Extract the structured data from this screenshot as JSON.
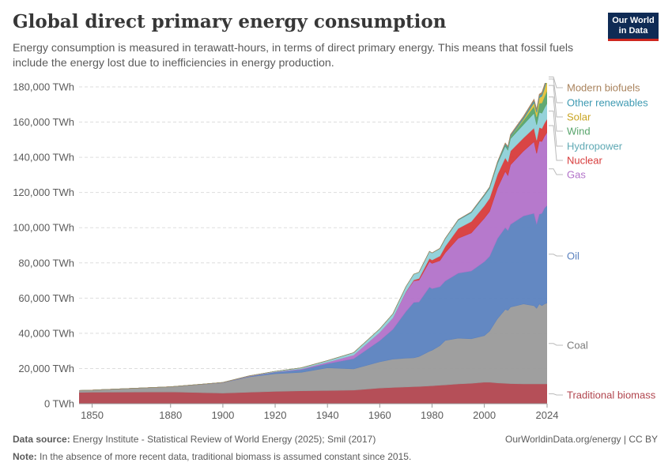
{
  "header": {
    "title": "Global direct primary energy consumption",
    "subtitle": "Energy consumption is measured in terawatt-hours, in terms of direct primary energy. This means that fossil fuels include the energy lost due to inefficiencies in energy production.",
    "logo_line1": "Our World",
    "logo_line2": "in Data",
    "logo_bg": "#0f2b55",
    "logo_accent": "#ce261e"
  },
  "footer": {
    "source_label": "Data source:",
    "source_text": "Energy Institute - Statistical Review of World Energy (2025); Smil (2017)",
    "note_label": "Note:",
    "note_text": "In the absence of more recent data, traditional biomass is assumed constant since 2015.",
    "credit": "OurWorldinData.org/energy | CC BY"
  },
  "chart_data": {
    "type": "area",
    "stacked": true,
    "grid": "horizontal dashed",
    "legend_position": "right (inline labels)",
    "ylim": [
      0,
      180000
    ],
    "xlim": [
      1845,
      2024
    ],
    "x_ticks": [
      1850,
      1880,
      1900,
      1920,
      1940,
      1960,
      1980,
      2000,
      2024
    ],
    "y_ticks": [
      0,
      20000,
      40000,
      60000,
      80000,
      100000,
      120000,
      140000,
      160000,
      180000
    ],
    "y_tick_labels": [
      "0 TWh",
      "20,000 TWh",
      "40,000 TWh",
      "60,000 TWh",
      "80,000 TWh",
      "100,000 TWh",
      "120,000 TWh",
      "140,000 TWh",
      "160,000 TWh",
      "180,000 TWh"
    ],
    "x": [
      1800,
      1850,
      1880,
      1900,
      1910,
      1920,
      1930,
      1940,
      1950,
      1960,
      1965,
      1970,
      1973,
      1975,
      1979,
      1980,
      1983,
      1985,
      1990,
      1995,
      2000,
      2002,
      2005,
      2008,
      2009,
      2010,
      2015,
      2019,
      2020,
      2021,
      2022,
      2023,
      2024
    ],
    "series": [
      {
        "name": "Traditional biomass",
        "color": "#b1464f",
        "values": [
          5600,
          6500,
          6700,
          6000,
          6500,
          7000,
          7300,
          7500,
          7700,
          8900,
          9200,
          9500,
          9700,
          9800,
          10100,
          10200,
          10500,
          10700,
          11200,
          11600,
          12200,
          12200,
          11800,
          11600,
          11500,
          11400,
          11200,
          11200,
          11200,
          11200,
          11200,
          11200,
          11200
        ]
      },
      {
        "name": "Coal",
        "color": "#9a9a9a",
        "values": [
          100,
          1200,
          2900,
          5900,
          8700,
          10000,
          10500,
          12900,
          12100,
          14900,
          16100,
          16400,
          16400,
          17000,
          19700,
          20200,
          22500,
          25200,
          26000,
          25300,
          26500,
          29000,
          36500,
          42000,
          41500,
          43500,
          45500,
          44500,
          43000,
          45500,
          44500,
          45500,
          46000
        ]
      },
      {
        "name": "Oil",
        "color": "#5b82bf",
        "values": [
          0,
          0,
          0,
          100,
          350,
          900,
          1600,
          2400,
          5800,
          12000,
          17000,
          26500,
          31500,
          31000,
          36500,
          35000,
          33500,
          33800,
          37000,
          38500,
          42000,
          42500,
          45500,
          46500,
          45500,
          47000,
          50000,
          52500,
          48000,
          51000,
          52500,
          54500,
          55500
        ]
      },
      {
        "name": "Gas",
        "color": "#b272c9",
        "values": [
          0,
          0,
          0,
          50,
          130,
          200,
          400,
          800,
          2000,
          4800,
          6400,
          11000,
          12200,
          12400,
          14500,
          14300,
          14800,
          16000,
          19800,
          21600,
          24700,
          25500,
          28700,
          31900,
          31200,
          33800,
          36900,
          40700,
          40000,
          41500,
          40800,
          40800,
          41500
        ]
      },
      {
        "name": "Nuclear",
        "color": "#d73b3b",
        "values": [
          0,
          0,
          0,
          0,
          0,
          0,
          0,
          0,
          0,
          0,
          30,
          200,
          550,
          1000,
          1800,
          1950,
          2650,
          3600,
          5600,
          6500,
          7100,
          7500,
          7700,
          7800,
          7700,
          7900,
          7500,
          7800,
          7500,
          7800,
          7400,
          7500,
          7600
        ]
      },
      {
        "name": "Hydropower",
        "color": "#8ed0d8",
        "values": [
          0,
          0,
          0,
          20,
          140,
          300,
          600,
          900,
          1400,
          1900,
          2300,
          2900,
          3200,
          3500,
          3900,
          4000,
          4200,
          4400,
          4700,
          5000,
          5700,
          5600,
          6100,
          6600,
          6700,
          7000,
          7600,
          8400,
          8700,
          8600,
          8700,
          8600,
          8900
        ]
      },
      {
        "name": "Wind",
        "color": "#58a46c",
        "values": [
          0,
          0,
          0,
          0,
          0,
          0,
          0,
          0,
          0,
          0,
          0,
          0,
          0,
          0,
          0,
          0,
          0,
          0,
          10,
          15,
          80,
          150,
          300,
          630,
          780,
          970,
          2300,
          3900,
          4500,
          5100,
          5800,
          6400,
          7200
        ]
      },
      {
        "name": "Solar",
        "color": "#e3c03a",
        "values": [
          0,
          0,
          0,
          0,
          0,
          0,
          0,
          0,
          0,
          0,
          0,
          0,
          0,
          0,
          0,
          0,
          0,
          0,
          0,
          0,
          2,
          5,
          10,
          35,
          60,
          95,
          720,
          2100,
          2600,
          3100,
          3800,
          4600,
          5900
        ]
      },
      {
        "name": "Other renewables",
        "color": "#3e9ab2",
        "values": [
          0,
          0,
          0,
          0,
          0,
          0,
          0,
          0,
          0,
          0,
          0,
          0,
          0,
          0,
          50,
          60,
          90,
          120,
          280,
          400,
          480,
          520,
          620,
          720,
          760,
          800,
          980,
          1150,
          1180,
          1220,
          1270,
          1300,
          1340
        ]
      },
      {
        "name": "Modern biofuels",
        "color": "#a9835d",
        "values": [
          0,
          0,
          0,
          0,
          0,
          0,
          0,
          0,
          0,
          0,
          0,
          0,
          0,
          0,
          20,
          30,
          60,
          80,
          100,
          110,
          120,
          140,
          240,
          450,
          500,
          560,
          690,
          800,
          750,
          830,
          900,
          950,
          1000
        ]
      }
    ]
  }
}
